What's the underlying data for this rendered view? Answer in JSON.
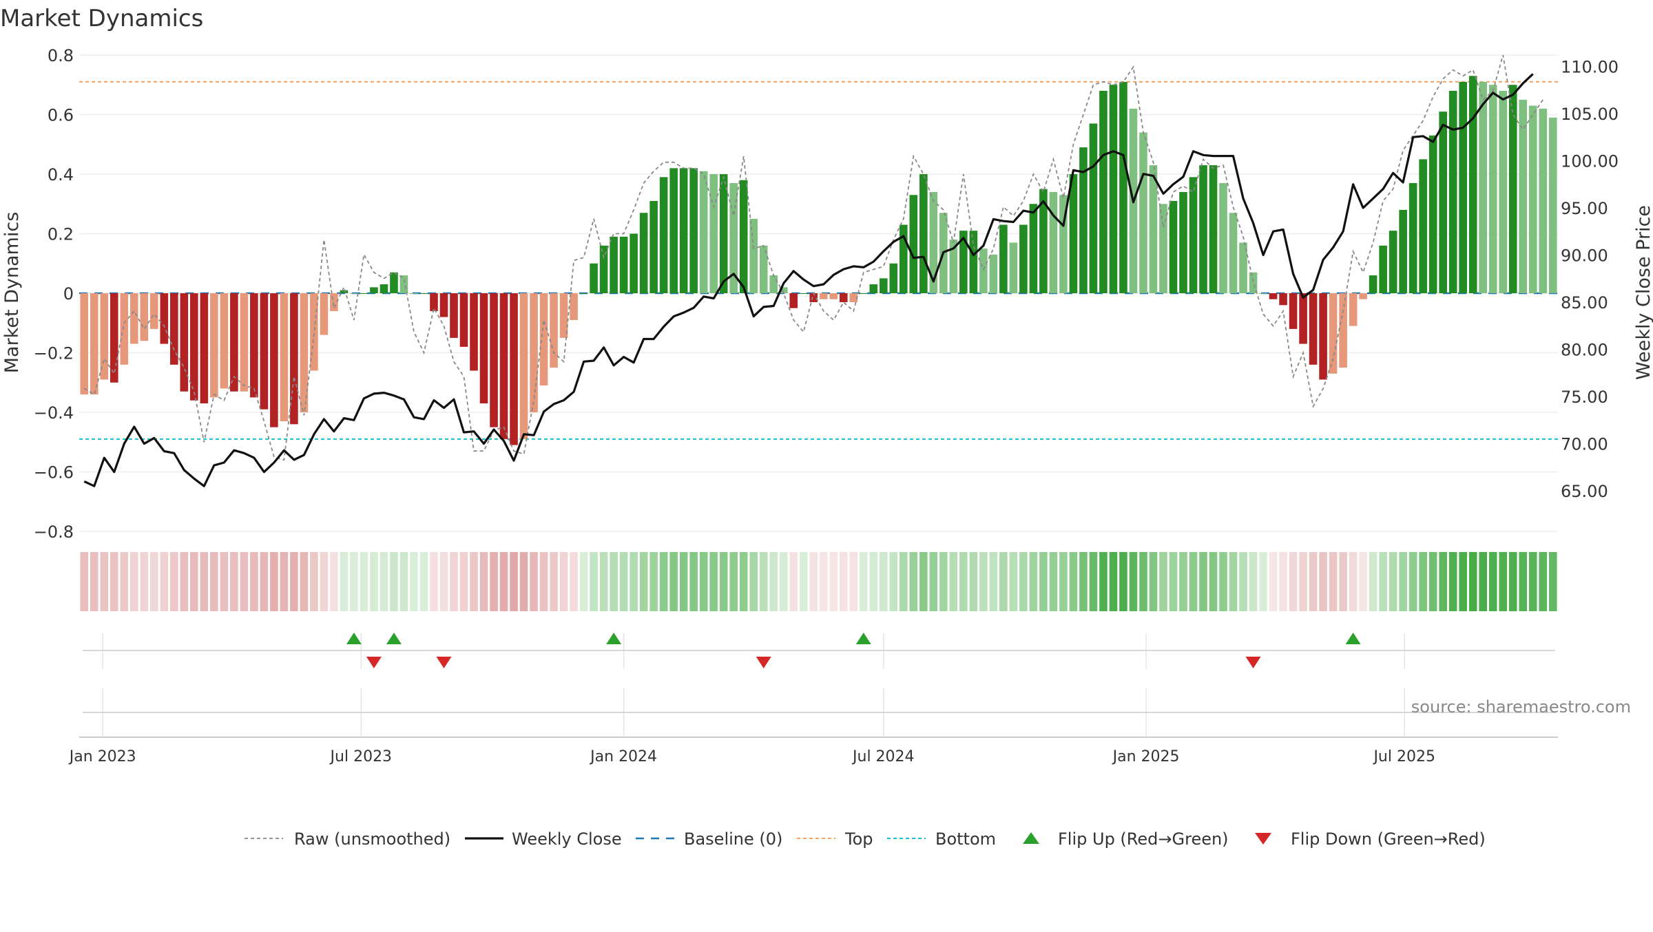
{
  "chart_data": {
    "type": "bar",
    "title": "Market Dynamics",
    "ylabel": "Market Dynamics",
    "y2label": "Weekly Close Price",
    "source": "source: sharemaestro.com",
    "ylim": [
      -0.8,
      0.8
    ],
    "y2lim": [
      60.7,
      111.2
    ],
    "yticks": [
      "0.8",
      "0.6",
      "0.4",
      "0.2",
      "0",
      "−0.2",
      "−0.4",
      "−0.6",
      "−0.8"
    ],
    "y2ticks": [
      "110.00",
      "105.00",
      "100.00",
      "95.00",
      "90.00",
      "85.00",
      "80.00",
      "75.00",
      "70.00",
      "65.00"
    ],
    "xticks": [
      "Jan 2023",
      "Jul 2023",
      "Jan 2024",
      "Jul 2024",
      "Jan 2025",
      "Jul 2025"
    ],
    "x_start": "2022-12-19",
    "x_step_days": 7,
    "top_line": 0.71,
    "bottom_line": -0.49,
    "baseline": 0,
    "colors": {
      "strong_green": "#228B22",
      "light_green": "#7FBF7F",
      "strong_red": "#B22222",
      "light_red": "#E5987A",
      "top": "#F4A460",
      "bottom": "#17BECF",
      "baseline": "#1F77B4",
      "close": "#111111",
      "raw": "#888888",
      "flip_up": "#2CA02C",
      "flip_down": "#D62728"
    },
    "legend": {
      "raw": "Raw (unsmoothed)",
      "close": "Weekly Close",
      "baseline": "Baseline (0)",
      "top": "Top",
      "bottom": "Bottom",
      "flip_up": "Flip Up (Red→Green)",
      "flip_down": "Flip Down (Green→Red)"
    },
    "series": [
      {
        "name": "Market Dynamics",
        "values": [
          -0.34,
          -0.34,
          -0.29,
          -0.3,
          -0.24,
          -0.17,
          -0.16,
          -0.12,
          -0.17,
          -0.24,
          -0.33,
          -0.36,
          -0.37,
          -0.35,
          -0.32,
          -0.33,
          -0.33,
          -0.35,
          -0.39,
          -0.45,
          -0.43,
          -0.44,
          -0.4,
          -0.26,
          -0.14,
          -0.06,
          0.01,
          0.0,
          0.0,
          0.02,
          0.03,
          0.07,
          0.06,
          0.0,
          0.0,
          -0.06,
          -0.08,
          -0.15,
          -0.18,
          -0.26,
          -0.37,
          -0.45,
          -0.49,
          -0.51,
          -0.49,
          -0.4,
          -0.31,
          -0.25,
          -0.15,
          -0.09,
          0.0,
          0.1,
          0.16,
          0.19,
          0.19,
          0.2,
          0.27,
          0.31,
          0.39,
          0.42,
          0.42,
          0.42,
          0.41,
          0.4,
          0.4,
          0.37,
          0.38,
          0.25,
          0.16,
          0.06,
          0.02,
          -0.05,
          0.0,
          -0.03,
          -0.02,
          -0.02,
          -0.03,
          -0.03,
          0.0,
          0.03,
          0.05,
          0.1,
          0.23,
          0.33,
          0.4,
          0.34,
          0.27,
          0.18,
          0.21,
          0.21,
          0.15,
          0.13,
          0.23,
          0.17,
          0.23,
          0.3,
          0.35,
          0.34,
          0.33,
          0.4,
          0.49,
          0.57,
          0.68,
          0.7,
          0.71,
          0.62,
          0.54,
          0.43,
          0.3,
          0.31,
          0.34,
          0.39,
          0.43,
          0.43,
          0.37,
          0.27,
          0.17,
          0.07,
          0.0,
          -0.02,
          -0.04,
          -0.12,
          -0.17,
          -0.24,
          -0.29,
          -0.27,
          -0.25,
          -0.11,
          -0.02,
          0.06,
          0.16,
          0.21,
          0.28,
          0.37,
          0.45,
          0.53,
          0.61,
          0.68,
          0.71,
          0.73,
          0.71,
          0.7,
          0.68,
          0.7,
          0.65,
          0.63,
          0.62,
          0.59
        ]
      },
      {
        "name": "Raw (unsmoothed)",
        "values": [
          -0.32,
          -0.34,
          -0.22,
          -0.27,
          -0.1,
          -0.06,
          -0.12,
          -0.07,
          -0.11,
          -0.19,
          -0.25,
          -0.33,
          -0.5,
          -0.34,
          -0.36,
          -0.28,
          -0.31,
          -0.32,
          -0.43,
          -0.55,
          -0.56,
          -0.28,
          -0.41,
          -0.14,
          0.18,
          -0.05,
          0.02,
          -0.09,
          0.13,
          0.07,
          0.05,
          0.07,
          0.05,
          -0.13,
          -0.2,
          -0.05,
          -0.11,
          -0.23,
          -0.28,
          -0.53,
          -0.53,
          -0.46,
          -0.45,
          -0.53,
          -0.54,
          -0.36,
          -0.09,
          -0.2,
          -0.23,
          0.11,
          0.12,
          0.25,
          0.12,
          0.2,
          0.2,
          0.28,
          0.37,
          0.41,
          0.44,
          0.44,
          0.42,
          0.42,
          0.4,
          0.29,
          0.39,
          0.26,
          0.46,
          0.15,
          0.16,
          0.06,
          0.0,
          -0.09,
          -0.13,
          0.0,
          -0.06,
          -0.09,
          -0.03,
          -0.06,
          0.07,
          0.08,
          0.09,
          0.18,
          0.25,
          0.46,
          0.4,
          0.31,
          0.28,
          0.17,
          0.4,
          0.16,
          0.08,
          0.15,
          0.29,
          0.26,
          0.31,
          0.4,
          0.34,
          0.45,
          0.32,
          0.5,
          0.6,
          0.7,
          0.71,
          0.7,
          0.71,
          0.76,
          0.54,
          0.44,
          0.22,
          0.34,
          0.36,
          0.34,
          0.45,
          0.42,
          0.43,
          0.29,
          0.19,
          0.04,
          -0.07,
          -0.11,
          -0.06,
          -0.28,
          -0.2,
          -0.38,
          -0.32,
          -0.22,
          -0.06,
          0.14,
          0.07,
          0.17,
          0.31,
          0.35,
          0.48,
          0.53,
          0.58,
          0.66,
          0.72,
          0.75,
          0.73,
          0.75,
          0.65,
          0.68,
          0.8,
          0.6,
          0.55,
          0.6,
          0.65
        ]
      },
      {
        "name": "Weekly Close",
        "values": [
          66.0,
          65.5,
          68.5,
          67.0,
          70.0,
          71.8,
          70.0,
          70.6,
          69.2,
          69.0,
          67.2,
          66.3,
          65.5,
          67.7,
          68.0,
          69.3,
          69.0,
          68.5,
          67.0,
          68.0,
          69.3,
          68.3,
          68.8,
          71.0,
          72.6,
          71.3,
          72.7,
          72.5,
          74.8,
          75.3,
          75.4,
          75.1,
          74.7,
          72.8,
          72.6,
          74.6,
          73.8,
          74.7,
          71.2,
          71.3,
          70.0,
          71.5,
          70.3,
          68.2,
          71.0,
          70.9,
          73.4,
          74.2,
          74.6,
          75.5,
          78.7,
          78.8,
          80.2,
          78.3,
          79.2,
          78.6,
          81.1,
          81.1,
          82.4,
          83.5,
          83.9,
          84.4,
          85.6,
          85.4,
          87.2,
          88.0,
          86.6,
          83.5,
          84.5,
          84.6,
          87.0,
          88.3,
          87.4,
          86.7,
          86.9,
          87.9,
          88.5,
          88.8,
          88.7,
          89.3,
          90.4,
          91.4,
          92.0,
          89.7,
          89.8,
          87.2,
          90.3,
          90.7,
          91.8,
          90.0,
          91.0,
          93.8,
          93.6,
          93.5,
          94.7,
          94.5,
          95.7,
          94.2,
          93.1,
          99.0,
          98.8,
          99.4,
          100.6,
          101.0,
          100.6,
          95.6,
          98.6,
          98.4,
          96.5,
          97.5,
          98.3,
          101.0,
          100.6,
          100.5,
          100.5,
          100.5,
          96.0,
          93.4,
          90.0,
          92.5,
          92.7,
          88.0,
          85.5,
          86.3,
          89.5,
          90.8,
          92.5,
          97.5,
          95.0,
          96.0,
          97.0,
          98.7,
          97.7,
          102.5,
          102.6,
          102.0,
          103.8,
          103.3,
          103.5,
          104.5,
          106.0,
          107.2,
          106.5,
          107.0,
          108.2,
          109.2
        ]
      }
    ],
    "flip_up": [
      "2023-06-26",
      "2023-07-24",
      "2023-12-25",
      "2024-06-17",
      "2025-05-26"
    ],
    "flip_down": [
      "2023-07-10",
      "2023-08-28",
      "2024-04-08",
      "2025-03-17"
    ]
  }
}
